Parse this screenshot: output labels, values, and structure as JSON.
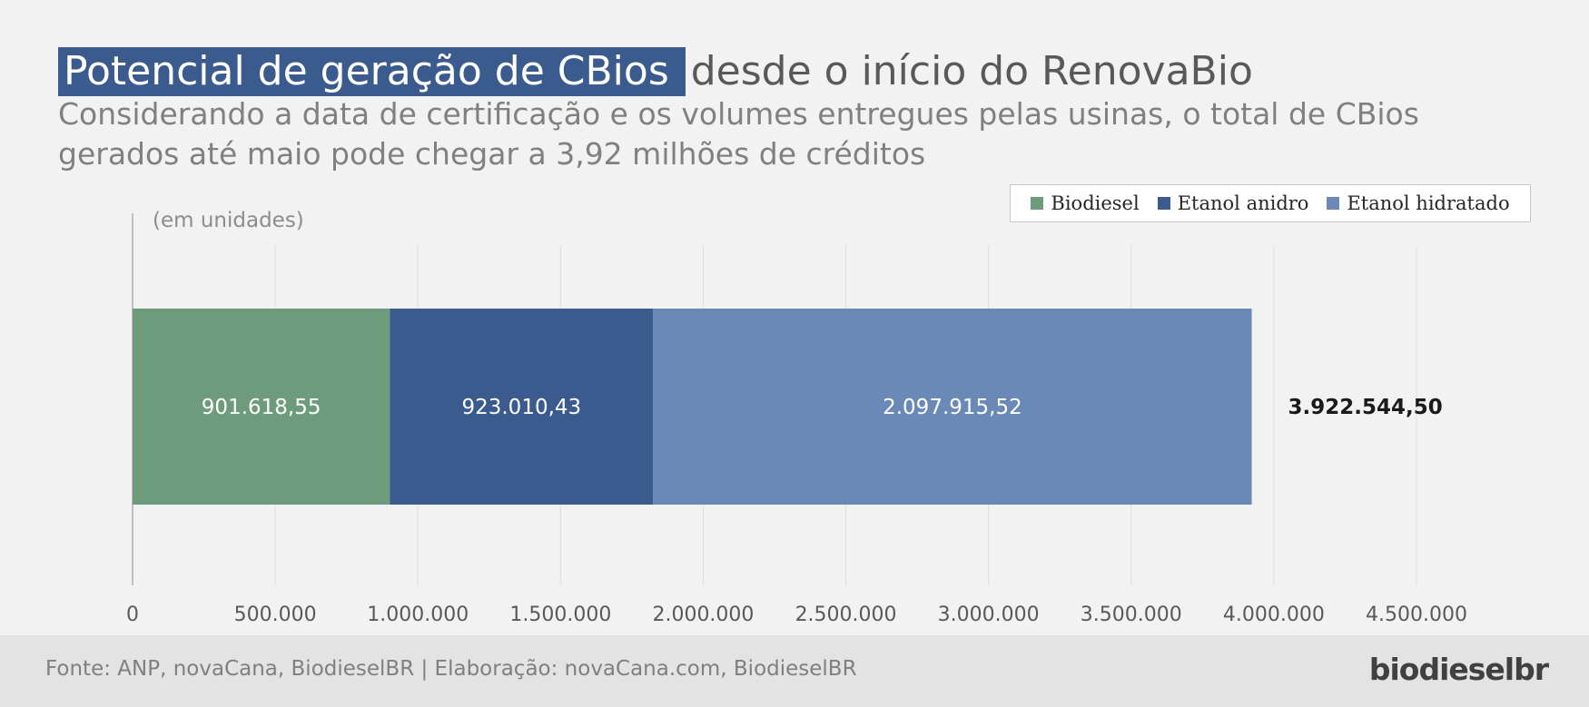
{
  "header": {
    "title_highlight": "Potencial de geração de CBios",
    "title_rest": "desde o início do RenovaBio",
    "subtitle": "Considerando a data de certificação e os volumes entregues pelas usinas, o total de CBios gerados até maio pode chegar a 3,92 milhões de créditos"
  },
  "unit_label": "(em unidades)",
  "legend": [
    {
      "label": "Biodiesel",
      "color": "#6e9b7c"
    },
    {
      "label": "Etanol anidro",
      "color": "#3b5b8f"
    },
    {
      "label": "Etanol hidratado",
      "color": "#6a89b6"
    }
  ],
  "footer": {
    "source": "Fonte: ANP, novaCana, BiodieselBR | Elaboração: novaCana.com, BiodieselBR",
    "brand": "biodieselbr"
  },
  "chart_data": {
    "type": "bar",
    "orientation": "horizontal",
    "stacked": true,
    "categories": [
      ""
    ],
    "series": [
      {
        "name": "Biodiesel",
        "values": [
          901618.55
        ],
        "label": "901.618,55",
        "color": "#6e9b7c"
      },
      {
        "name": "Etanol anidro",
        "values": [
          923010.43
        ],
        "label": "923.010,43",
        "color": "#3b5b8f"
      },
      {
        "name": "Etanol hidratado",
        "values": [
          2097915.52
        ],
        "label": "2.097.915,52",
        "color": "#6a89b6"
      }
    ],
    "total": {
      "value": 3922544.5,
      "label": "3.922.544,50"
    },
    "xlim": [
      0,
      4500000
    ],
    "xticks": [
      0,
      500000,
      1000000,
      1500000,
      2000000,
      2500000,
      3000000,
      3500000,
      4000000,
      4500000
    ],
    "xtick_labels": [
      "0",
      "500.000",
      "1.000.000",
      "1.500.000",
      "2.000.000",
      "2.500.000",
      "3.000.000",
      "3.500.000",
      "4.000.000",
      "4.500.000"
    ],
    "grid": true,
    "legend_position": "top-right"
  }
}
